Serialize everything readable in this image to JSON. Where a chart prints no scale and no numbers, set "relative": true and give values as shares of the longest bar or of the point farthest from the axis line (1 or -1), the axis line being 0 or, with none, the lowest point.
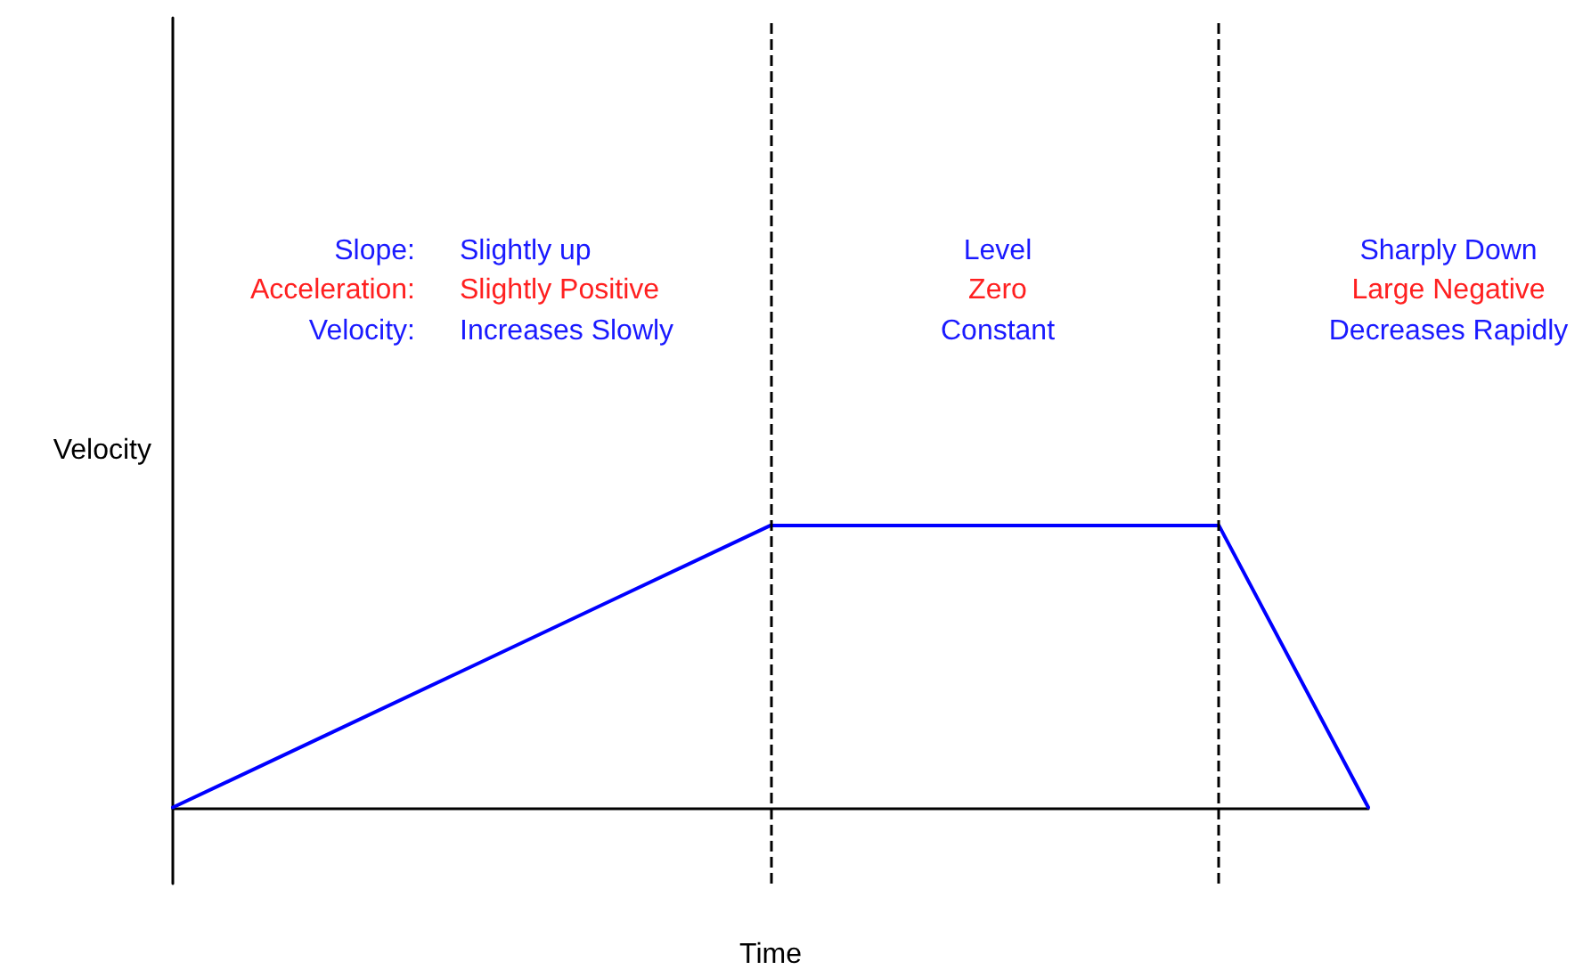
{
  "chart_data": {
    "type": "line",
    "relative": true,
    "xlabel": "Time",
    "ylabel": "Velocity",
    "categories": [
      null,
      null,
      null,
      null,
      null,
      null,
      null,
      null,
      null
    ],
    "grid": false,
    "marker": "none",
    "line_style": "solid",
    "series": [
      {
        "color": "#0000ff",
        "values": [
          0,
          0.25,
          0.5,
          0.75,
          1,
          1,
          1,
          1,
          0
        ]
      }
    ],
    "annotations": [
      "Slope:",
      "Acceleration:",
      "Velocity:",
      "Slightly up",
      "Slightly Positive",
      "Increases Slowly",
      "Level",
      "Zero",
      "Constant",
      "Sharply Down",
      "Large Negative",
      "Decreases Rapidly"
    ]
  }
}
